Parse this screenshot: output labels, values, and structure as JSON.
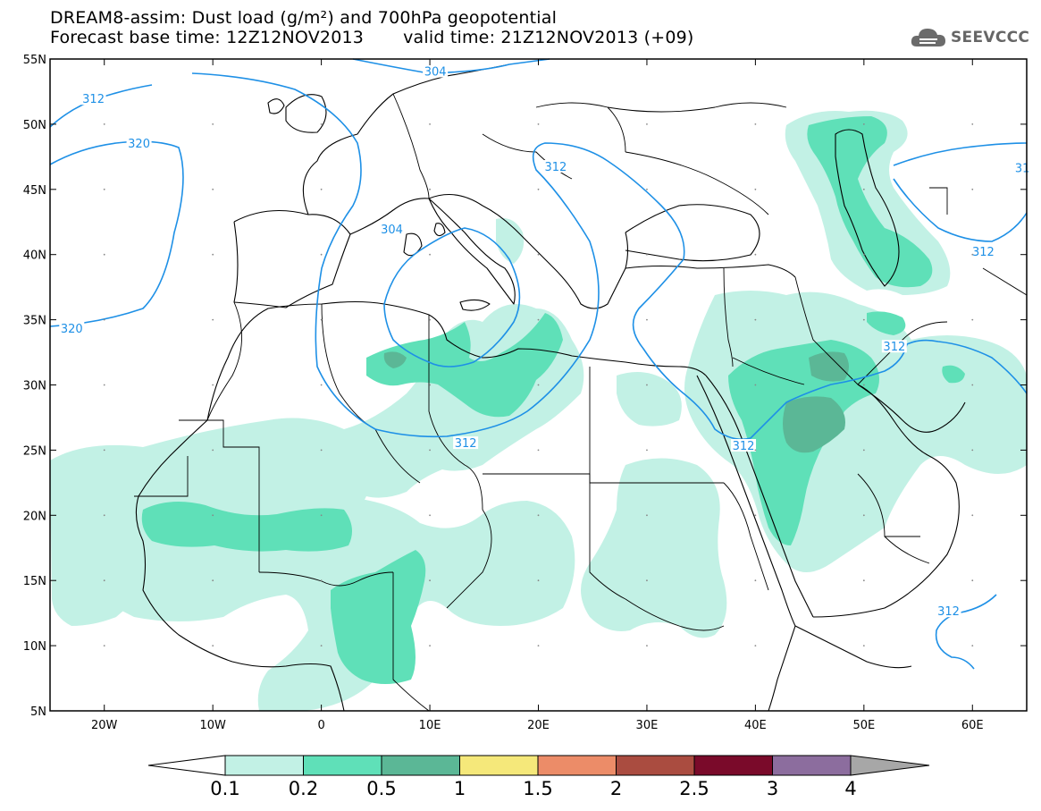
{
  "header": {
    "title_line1": "DREAM8-assim: Dust load (g/m²) and 700hPa geopotential",
    "base_label": "Forecast base time: 12Z12NOV2013",
    "valid_label": "valid time: 21Z12NOV2013 (+09)"
  },
  "logo": {
    "icon": "cloud-icon",
    "text": "SEEVCCC"
  },
  "map": {
    "lon_range": [
      -25,
      65
    ],
    "lat_range": [
      5,
      55
    ],
    "lon_ticks": [
      {
        "lon": -20,
        "label": "20W"
      },
      {
        "lon": -10,
        "label": "10W"
      },
      {
        "lon": 0,
        "label": "0"
      },
      {
        "lon": 10,
        "label": "10E"
      },
      {
        "lon": 20,
        "label": "20E"
      },
      {
        "lon": 30,
        "label": "30E"
      },
      {
        "lon": 40,
        "label": "40E"
      },
      {
        "lon": 50,
        "label": "50E"
      },
      {
        "lon": 60,
        "label": "60E"
      }
    ],
    "lat_ticks": [
      {
        "lat": 55,
        "label": "55N"
      },
      {
        "lat": 50,
        "label": "50N"
      },
      {
        "lat": 45,
        "label": "45N"
      },
      {
        "lat": 40,
        "label": "40N"
      },
      {
        "lat": 35,
        "label": "35N"
      },
      {
        "lat": 30,
        "label": "30N"
      },
      {
        "lat": 25,
        "label": "25N"
      },
      {
        "lat": 20,
        "label": "20N"
      },
      {
        "lat": 15,
        "label": "15N"
      },
      {
        "lat": 10,
        "label": "10N"
      },
      {
        "lat": 5,
        "label": "5N"
      }
    ],
    "contour_color": "#1e90e6",
    "contour_labels": [
      {
        "value": "304",
        "lon": 10.5,
        "lat": 54.0
      },
      {
        "value": "304",
        "lon": 6.5,
        "lat": 41.9
      },
      {
        "value": "312",
        "lon": -21.0,
        "lat": 51.9
      },
      {
        "value": "320",
        "lon": -16.8,
        "lat": 48.5
      },
      {
        "value": "320",
        "lon": -23.0,
        "lat": 34.3
      },
      {
        "value": "312",
        "lon": 13.3,
        "lat": 25.5
      },
      {
        "value": "312",
        "lon": 21.6,
        "lat": 46.7
      },
      {
        "value": "312",
        "lon": 38.9,
        "lat": 25.3
      },
      {
        "value": "312",
        "lon": 52.8,
        "lat": 32.9
      },
      {
        "value": "312",
        "lon": 61.0,
        "lat": 40.2
      },
      {
        "value": "31",
        "lon": 64.6,
        "lat": 46.6
      },
      {
        "value": "312",
        "lon": 57.8,
        "lat": 12.6
      }
    ]
  },
  "colorbar": {
    "labels": [
      "0.1",
      "0.2",
      "0.5",
      "1",
      "1.5",
      "2",
      "2.5",
      "3",
      "4"
    ],
    "colors": [
      "#ffffff",
      "#c2f1e5",
      "#5fe0b8",
      "#5bb796",
      "#f5e87a",
      "#ec8c68",
      "#aa4c40",
      "#7a0a2a",
      "#8c6d9e",
      "#a7a7a7"
    ]
  }
}
